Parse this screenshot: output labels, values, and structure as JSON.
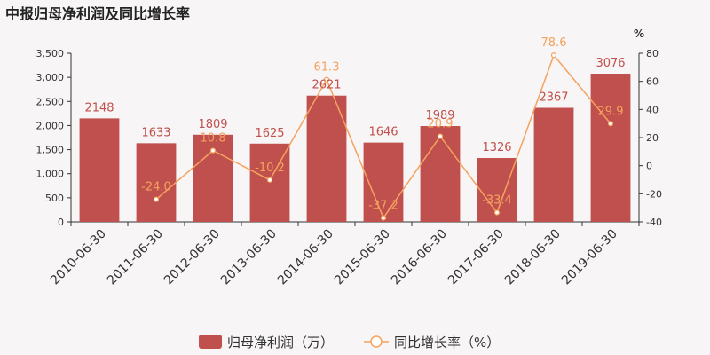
{
  "title": "中报归母净利润及同比增长率",
  "chart_data": {
    "type": "bar",
    "categories": [
      "2010-06-30",
      "2011-06-30",
      "2012-06-30",
      "2013-06-30",
      "2014-06-30",
      "2015-06-30",
      "2016-06-30",
      "2017-06-30",
      "2018-06-30",
      "2019-06-30"
    ],
    "series": [
      {
        "name": "归母净利润（万）",
        "type": "bar",
        "axis": "left",
        "color": "#c0504d",
        "values": [
          2148,
          1633,
          1809,
          1625,
          2621,
          1646,
          1989,
          1326,
          2367,
          3076
        ]
      },
      {
        "name": "同比增长率（%）",
        "type": "line",
        "axis": "right",
        "color": "#f4a25e",
        "values": [
          null,
          -24.0,
          10.8,
          -10.2,
          61.3,
          -37.2,
          20.9,
          -33.4,
          78.6,
          29.9
        ],
        "labels": [
          "",
          "-24.0",
          "10.8",
          "-10.2",
          "61.3",
          "-37.2",
          "20.9",
          "-33.4",
          "78.6",
          "29.9"
        ]
      }
    ],
    "left_axis": {
      "ylim": [
        0,
        3500
      ],
      "ticks": [
        0,
        500,
        1000,
        1500,
        2000,
        2500,
        3000,
        3500
      ],
      "tick_labels": [
        "0",
        "500",
        "1,000",
        "1,500",
        "2,000",
        "2,500",
        "3,000",
        "3,500"
      ]
    },
    "right_axis": {
      "ylim": [
        -40,
        80
      ],
      "ticks": [
        -40,
        -20,
        0,
        20,
        40,
        60,
        80
      ],
      "tick_labels": [
        "-40",
        "-20",
        "0",
        "20",
        "40",
        "60",
        "80"
      ],
      "unit": "%"
    },
    "legend": {
      "placement": "bottom",
      "items": [
        "归母净利润（万）",
        "同比增长率（%）"
      ]
    },
    "grid": false
  }
}
